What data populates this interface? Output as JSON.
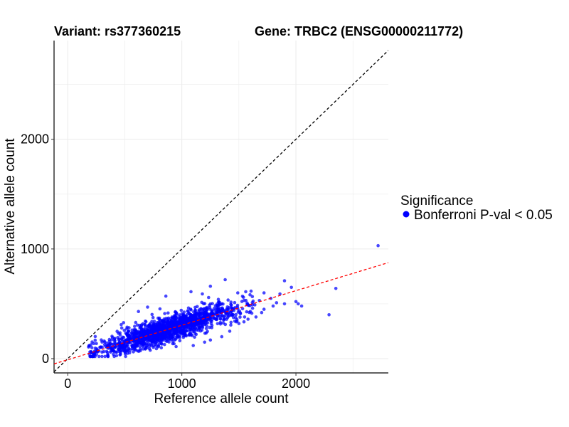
{
  "chart_data": {
    "type": "scatter",
    "title_left": "Variant: rs377360215",
    "title_right": "Gene: TRBC2 (ENSG00000211772)",
    "xlabel": "Reference allele count",
    "ylabel": "Alternative allele count",
    "xlim": [
      -120,
      2810
    ],
    "ylim": [
      -130,
      2900
    ],
    "x_ticks": [
      0,
      1000,
      2000
    ],
    "y_ticks": [
      0,
      1000,
      2000
    ],
    "grid": true,
    "legend": {
      "title": "Significance",
      "position": "right",
      "entries": [
        {
          "label": "Bonferroni P-val < 0.05",
          "color": "#0000ff"
        }
      ]
    },
    "identity_line": {
      "slope": 1,
      "intercept": 0,
      "color": "#000000",
      "style": "dashed"
    },
    "fit_line": {
      "slope": 0.315,
      "intercept": -10,
      "color": "#ff0000",
      "style": "dashed"
    },
    "point_color": "#0000ff",
    "series": [
      {
        "points": [
          [
            2720,
            1030
          ],
          [
            2350,
            640
          ],
          [
            2290,
            400
          ],
          [
            2020,
            500
          ],
          [
            2000,
            520
          ],
          [
            1960,
            650
          ],
          [
            1900,
            710
          ],
          [
            1860,
            590
          ],
          [
            1830,
            510
          ],
          [
            1780,
            550
          ],
          [
            1720,
            600
          ],
          [
            1680,
            530
          ],
          [
            1640,
            490
          ],
          [
            1620,
            460
          ],
          [
            1600,
            430
          ],
          [
            1580,
            360
          ],
          [
            1560,
            610
          ],
          [
            1540,
            560
          ],
          [
            1500,
            320
          ],
          [
            1490,
            600
          ],
          [
            1450,
            400
          ],
          [
            1420,
            250
          ],
          [
            1380,
            720
          ],
          [
            1320,
            540
          ],
          [
            1250,
            660
          ],
          [
            1180,
            590
          ],
          [
            1080,
            610
          ],
          [
            860,
            570
          ],
          [
            700,
            470
          ],
          [
            620,
            430
          ],
          [
            530,
            250
          ],
          [
            300,
            60
          ],
          [
            260,
            70
          ],
          [
            230,
            50
          ],
          [
            190,
            40
          ],
          [
            1200,
            150
          ],
          [
            1100,
            120
          ],
          [
            950,
            110
          ],
          [
            820,
            100
          ],
          [
            1720,
            450
          ],
          [
            1800,
            480
          ],
          [
            1900,
            500
          ],
          [
            2050,
            480
          ],
          [
            1650,
            380
          ],
          [
            1700,
            420
          ],
          [
            1550,
            380
          ],
          [
            1350,
            200
          ],
          [
            1250,
            170
          ]
        ]
      }
    ]
  }
}
